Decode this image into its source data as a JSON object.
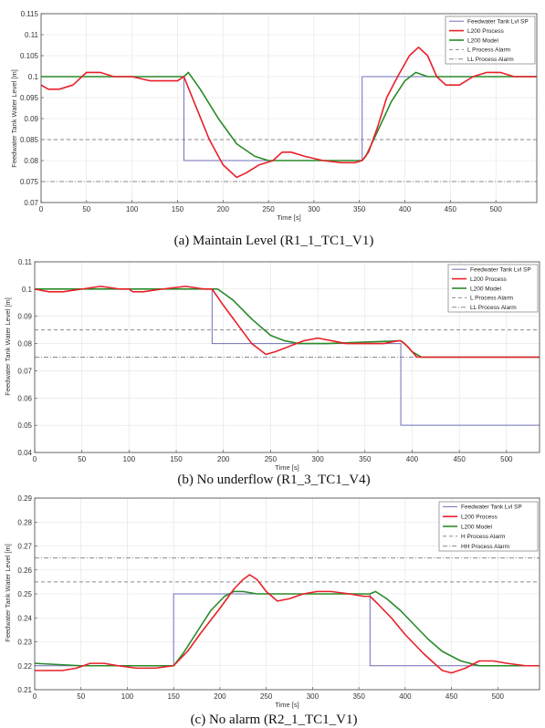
{
  "chart_data": [
    {
      "type": "line",
      "caption": "(a) Maintain Level (R1_1_TC1_V1)",
      "xlabel": "Time [s]",
      "ylabel": "Feedwater Tank Water Level [m]",
      "xlim": [
        0,
        545
      ],
      "ylim": [
        0.07,
        0.115
      ],
      "xticks": [
        0,
        50,
        100,
        150,
        200,
        250,
        300,
        350,
        400,
        450,
        500
      ],
      "yticks": [
        0.07,
        0.075,
        0.08,
        0.085,
        0.09,
        0.095,
        0.1,
        0.105,
        0.11,
        0.115
      ],
      "ytick_labels": [
        "0.07",
        "0.075",
        "0.08",
        "0.085",
        "0.09",
        "0.095",
        "0.1",
        "0.105",
        "0.11",
        "0.115"
      ],
      "grid": true,
      "legend_position": "top-right",
      "series": [
        {
          "name": "Feedwater Tank Lvl SP",
          "color": "#6f6fb8",
          "style": "solid",
          "width": 1,
          "x": [
            0,
            157,
            157,
            353,
            353,
            545
          ],
          "y": [
            0.1,
            0.1,
            0.08,
            0.08,
            0.1,
            0.1
          ]
        },
        {
          "name": "L200 Process",
          "color": "#e8202a",
          "style": "solid",
          "width": 1.6,
          "x": [
            0,
            8,
            20,
            35,
            50,
            65,
            80,
            100,
            120,
            140,
            150,
            157,
            170,
            185,
            200,
            215,
            225,
            240,
            255,
            265,
            275,
            290,
            310,
            330,
            345,
            353,
            360,
            370,
            380,
            392,
            405,
            415,
            425,
            435,
            445,
            460,
            475,
            490,
            505,
            520,
            535,
            545
          ],
          "y": [
            0.098,
            0.097,
            0.097,
            0.098,
            0.101,
            0.101,
            0.1,
            0.1,
            0.099,
            0.099,
            0.099,
            0.1,
            0.093,
            0.085,
            0.079,
            0.076,
            0.077,
            0.079,
            0.08,
            0.082,
            0.082,
            0.081,
            0.08,
            0.0795,
            0.0795,
            0.08,
            0.082,
            0.088,
            0.095,
            0.1,
            0.105,
            0.107,
            0.105,
            0.1,
            0.098,
            0.098,
            0.1,
            0.101,
            0.101,
            0.1,
            0.1,
            0.1
          ]
        },
        {
          "name": "L200 Model",
          "color": "#2a8a2a",
          "style": "solid",
          "width": 1.6,
          "x": [
            0,
            100,
            150,
            157,
            162,
            175,
            195,
            215,
            235,
            250,
            270,
            300,
            340,
            353,
            357,
            370,
            385,
            400,
            412,
            425,
            445,
            480,
            545
          ],
          "y": [
            0.1,
            0.1,
            0.1,
            0.1,
            0.101,
            0.097,
            0.09,
            0.084,
            0.081,
            0.08,
            0.08,
            0.08,
            0.08,
            0.08,
            0.081,
            0.087,
            0.094,
            0.099,
            0.101,
            0.1,
            0.1,
            0.1,
            0.1
          ]
        },
        {
          "name": "L Process Alarm",
          "color": "#8a8a8a",
          "style": "dash",
          "width": 1,
          "x": [
            0,
            545
          ],
          "y": [
            0.085,
            0.085
          ]
        },
        {
          "name": "LL Process Alarm",
          "color": "#8a8a8a",
          "style": "dashdot",
          "width": 1,
          "x": [
            0,
            545
          ],
          "y": [
            0.075,
            0.075
          ]
        }
      ]
    },
    {
      "type": "line",
      "caption": "(b) No underflow (R1_3_TC1_V4)",
      "xlabel": "Time [s]",
      "ylabel": "Feedwater Tank Water Level [m]",
      "xlim": [
        0,
        535
      ],
      "ylim": [
        0.04,
        0.11
      ],
      "xticks": [
        0,
        50,
        100,
        150,
        200,
        250,
        300,
        350,
        400,
        450,
        500
      ],
      "yticks": [
        0.04,
        0.05,
        0.06,
        0.07,
        0.08,
        0.09,
        0.1,
        0.11
      ],
      "ytick_labels": [
        "0.04",
        "0.05",
        "0.06",
        "0.07",
        "0.08",
        "0.09",
        "0.1",
        "0.11"
      ],
      "grid": true,
      "legend_position": "top-right",
      "series": [
        {
          "name": "Feedwater Tank Lvl SP",
          "color": "#6f6fb8",
          "style": "solid",
          "width": 1,
          "x": [
            0,
            188,
            188,
            388,
            388,
            535
          ],
          "y": [
            0.1,
            0.1,
            0.08,
            0.08,
            0.05,
            0.05
          ]
        },
        {
          "name": "L200 Process",
          "color": "#e8202a",
          "style": "solid",
          "width": 1.6,
          "x": [
            0,
            15,
            30,
            50,
            70,
            90,
            100,
            104,
            115,
            135,
            160,
            180,
            188,
            200,
            215,
            230,
            245,
            255,
            270,
            285,
            300,
            315,
            330,
            350,
            370,
            385,
            388,
            395,
            405,
            420,
            535
          ],
          "y": [
            0.1,
            0.099,
            0.099,
            0.1,
            0.101,
            0.1,
            0.1,
            0.099,
            0.099,
            0.1,
            0.101,
            0.1,
            0.1,
            0.094,
            0.087,
            0.08,
            0.076,
            0.077,
            0.079,
            0.081,
            0.082,
            0.081,
            0.08,
            0.08,
            0.08,
            0.081,
            0.081,
            0.079,
            0.075,
            0.075,
            0.075
          ]
        },
        {
          "name": "L200 Model",
          "color": "#2a8a2a",
          "style": "solid",
          "width": 1.6,
          "x": [
            0,
            188,
            194,
            210,
            230,
            250,
            265,
            280,
            310,
            388,
            392,
            400,
            410,
            535
          ],
          "y": [
            0.1,
            0.1,
            0.1,
            0.096,
            0.089,
            0.083,
            0.081,
            0.08,
            0.08,
            0.081,
            0.08,
            0.077,
            0.075,
            0.075
          ]
        },
        {
          "name": "L Process Alarm",
          "color": "#8a8a8a",
          "style": "dash",
          "width": 1,
          "x": [
            0,
            535
          ],
          "y": [
            0.085,
            0.085
          ]
        },
        {
          "name": "LL Process Alarm",
          "color": "#8a8a8a",
          "style": "dashdot",
          "width": 1,
          "x": [
            0,
            535
          ],
          "y": [
            0.075,
            0.075
          ]
        }
      ]
    },
    {
      "type": "line",
      "caption": "(c) No alarm (R2_1_TC1_V1)",
      "xlabel": "Time [s]",
      "ylabel": "Feedwater Tank Water Level [m]",
      "xlim": [
        0,
        545
      ],
      "ylim": [
        0.21,
        0.29
      ],
      "xticks": [
        0,
        50,
        100,
        150,
        200,
        250,
        300,
        350,
        400,
        450,
        500
      ],
      "yticks": [
        0.21,
        0.22,
        0.23,
        0.24,
        0.25,
        0.26,
        0.27,
        0.28,
        0.29
      ],
      "ytick_labels": [
        "0.21",
        "0.22",
        "0.23",
        "0.24",
        "0.25",
        "0.26",
        "0.27",
        "0.28",
        "0.29"
      ],
      "grid": true,
      "legend_position": "top-right",
      "series": [
        {
          "name": "Feedwater Tank Lvl SP",
          "color": "#6f6fb8",
          "style": "solid",
          "width": 1,
          "x": [
            0,
            150,
            150,
            362,
            362,
            545
          ],
          "y": [
            0.22,
            0.22,
            0.25,
            0.25,
            0.22,
            0.22
          ]
        },
        {
          "name": "L200 Process",
          "color": "#e8202a",
          "style": "solid",
          "width": 1.6,
          "x": [
            0,
            15,
            30,
            45,
            60,
            75,
            90,
            110,
            130,
            150,
            165,
            180,
            200,
            215,
            225,
            232,
            240,
            250,
            262,
            275,
            290,
            305,
            320,
            340,
            355,
            362,
            370,
            385,
            400,
            420,
            440,
            450,
            465,
            480,
            495,
            510,
            530,
            545
          ],
          "y": [
            0.218,
            0.218,
            0.218,
            0.219,
            0.221,
            0.221,
            0.22,
            0.219,
            0.219,
            0.22,
            0.226,
            0.234,
            0.244,
            0.252,
            0.256,
            0.258,
            0.256,
            0.251,
            0.247,
            0.248,
            0.25,
            0.251,
            0.251,
            0.25,
            0.249,
            0.249,
            0.246,
            0.24,
            0.233,
            0.225,
            0.218,
            0.217,
            0.219,
            0.222,
            0.222,
            0.221,
            0.22,
            0.22
          ]
        },
        {
          "name": "L200 Model",
          "color": "#2a8a2a",
          "style": "solid",
          "width": 1.6,
          "x": [
            0,
            50,
            100,
            150,
            160,
            175,
            190,
            205,
            215,
            225,
            240,
            280,
            330,
            362,
            368,
            380,
            395,
            410,
            425,
            440,
            460,
            480,
            500,
            545
          ],
          "y": [
            0.221,
            0.22,
            0.22,
            0.22,
            0.225,
            0.234,
            0.243,
            0.249,
            0.251,
            0.251,
            0.25,
            0.25,
            0.25,
            0.25,
            0.251,
            0.248,
            0.243,
            0.237,
            0.231,
            0.226,
            0.222,
            0.22,
            0.22,
            0.22
          ]
        },
        {
          "name": "H Process Alarm",
          "color": "#8a8a8a",
          "style": "dash",
          "width": 1,
          "x": [
            0,
            545
          ],
          "y": [
            0.255,
            0.255
          ]
        },
        {
          "name": "HH Process Alarm",
          "color": "#8a8a8a",
          "style": "dashdot",
          "width": 1,
          "x": [
            0,
            545
          ],
          "y": [
            0.265,
            0.265
          ]
        }
      ]
    }
  ]
}
